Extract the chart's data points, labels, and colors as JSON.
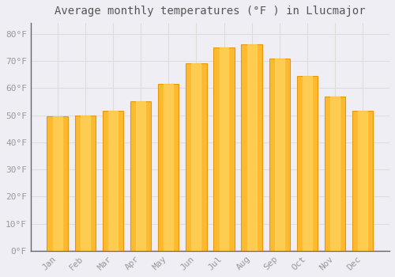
{
  "title": "Average monthly temperatures (°F ) in Llucmajor",
  "months": [
    "Jan",
    "Feb",
    "Mar",
    "Apr",
    "May",
    "Jun",
    "Jul",
    "Aug",
    "Sep",
    "Oct",
    "Nov",
    "Dec"
  ],
  "values": [
    49.5,
    50.0,
    51.5,
    55.0,
    61.5,
    69.0,
    75.0,
    76.0,
    71.0,
    64.5,
    57.0,
    51.5
  ],
  "bar_color_main": "#FDB930",
  "bar_color_edge": "#E8960A",
  "background_color": "#f0eef5",
  "plot_bg_color": "#f0eef5",
  "grid_color": "#dddddd",
  "yticks": [
    0,
    10,
    20,
    30,
    40,
    50,
    60,
    70,
    80
  ],
  "ylim": [
    0,
    84
  ],
  "title_fontsize": 10,
  "tick_fontsize": 8,
  "font_family": "monospace"
}
